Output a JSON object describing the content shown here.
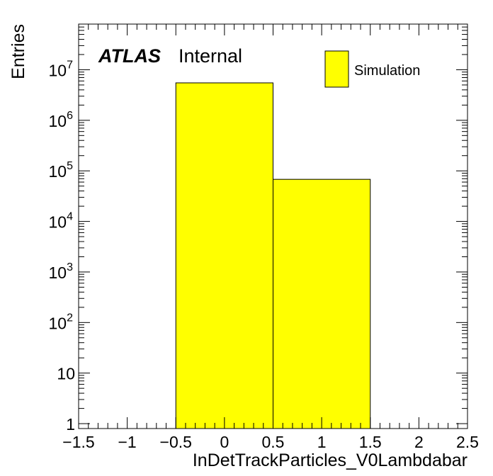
{
  "chart_data": {
    "type": "bar",
    "style": "histogram",
    "xlabel": "InDetTrackParticles_V0Lambdabar",
    "ylabel": "Entries",
    "xlim": [
      -1.5,
      2.5
    ],
    "ylim": [
      0.8,
      80000000
    ],
    "yscale": "log",
    "grid": false,
    "fill_color": "#ffff00",
    "x_ticks": [
      {
        "value": -1.5,
        "label": "−1.5"
      },
      {
        "value": -1,
        "label": "−1"
      },
      {
        "value": -0.5,
        "label": "−0.5"
      },
      {
        "value": 0,
        "label": "0"
      },
      {
        "value": 0.5,
        "label": "0.5"
      },
      {
        "value": 1,
        "label": "1"
      },
      {
        "value": 1.5,
        "label": "1.5"
      },
      {
        "value": 2,
        "label": "2"
      },
      {
        "value": 2.5,
        "label": "2.5"
      }
    ],
    "y_ticks": [
      {
        "value": 1,
        "base": "1",
        "exp": ""
      },
      {
        "value": 10,
        "base": "10",
        "exp": ""
      },
      {
        "value": 100,
        "base": "10",
        "exp": "2"
      },
      {
        "value": 1000,
        "base": "10",
        "exp": "3"
      },
      {
        "value": 10000,
        "base": "10",
        "exp": "4"
      },
      {
        "value": 100000,
        "base": "10",
        "exp": "5"
      },
      {
        "value": 1000000,
        "base": "10",
        "exp": "6"
      },
      {
        "value": 10000000,
        "base": "10",
        "exp": "7"
      }
    ],
    "bins": [
      {
        "low": -0.5,
        "high": 0.5,
        "value": 5500000
      },
      {
        "low": 0.5,
        "high": 1.5,
        "value": 68000
      }
    ],
    "legend": {
      "position": "top-right",
      "entries": [
        "Simulation"
      ]
    },
    "atlas_label": "ATLAS",
    "atlas_status": "Internal"
  }
}
